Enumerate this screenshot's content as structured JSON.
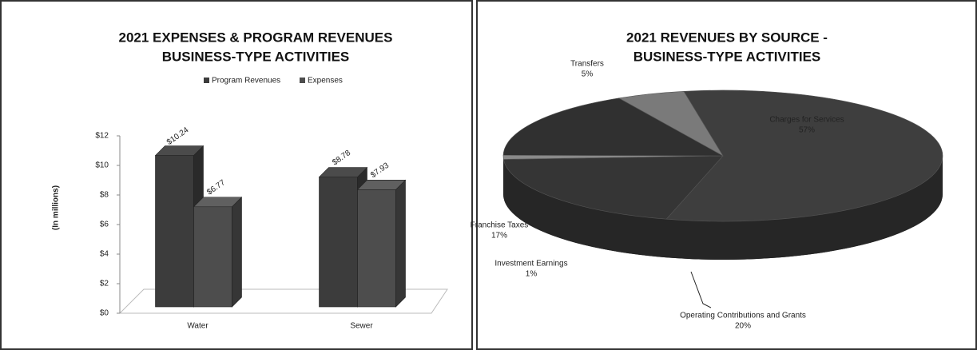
{
  "chart_data": [
    {
      "type": "bar",
      "title": [
        "2021 EXPENSES & PROGRAM REVENUES",
        "BUSINESS-TYPE ACTIVITIES"
      ],
      "ylabel": "(In millions)",
      "categories": [
        "Water",
        "Sewer"
      ],
      "series": [
        {
          "name": "Program Revenues",
          "color": "#3c3c3c",
          "values": [
            10.24,
            8.78
          ],
          "value_labels": [
            "$10.24",
            "$8.78"
          ]
        },
        {
          "name": "Expenses",
          "color": "#4d4d4d",
          "values": [
            6.77,
            7.93
          ],
          "value_labels": [
            "$6.77",
            "$7.93"
          ]
        }
      ],
      "ylim": [
        0,
        12
      ],
      "yticks": [
        {
          "value": 0,
          "label": "$0"
        },
        {
          "value": 2,
          "label": "$2"
        },
        {
          "value": 4,
          "label": "$4"
        },
        {
          "value": 6,
          "label": "$6"
        },
        {
          "value": 8,
          "label": "$8"
        },
        {
          "value": 10,
          "label": "$10"
        },
        {
          "value": 12,
          "label": "$12"
        }
      ],
      "legend": "top"
    },
    {
      "type": "pie",
      "title": [
        "2021 REVENUES BY SOURCE -",
        "BUSINESS-TYPE ACTIVITIES"
      ],
      "categories": [
        "Charges for Services",
        "Operating Contributions and Grants",
        "Investment Earnings",
        "Franchise Taxes",
        "Transfers"
      ],
      "values": [
        57,
        20,
        1,
        17,
        5
      ],
      "value_labels": [
        "57%",
        "20%",
        "1%",
        "17%",
        "5%"
      ],
      "colors": [
        "#3e3e3e",
        "#353535",
        "#8a8a8a",
        "#303030",
        "#7a7a7a"
      ]
    }
  ]
}
